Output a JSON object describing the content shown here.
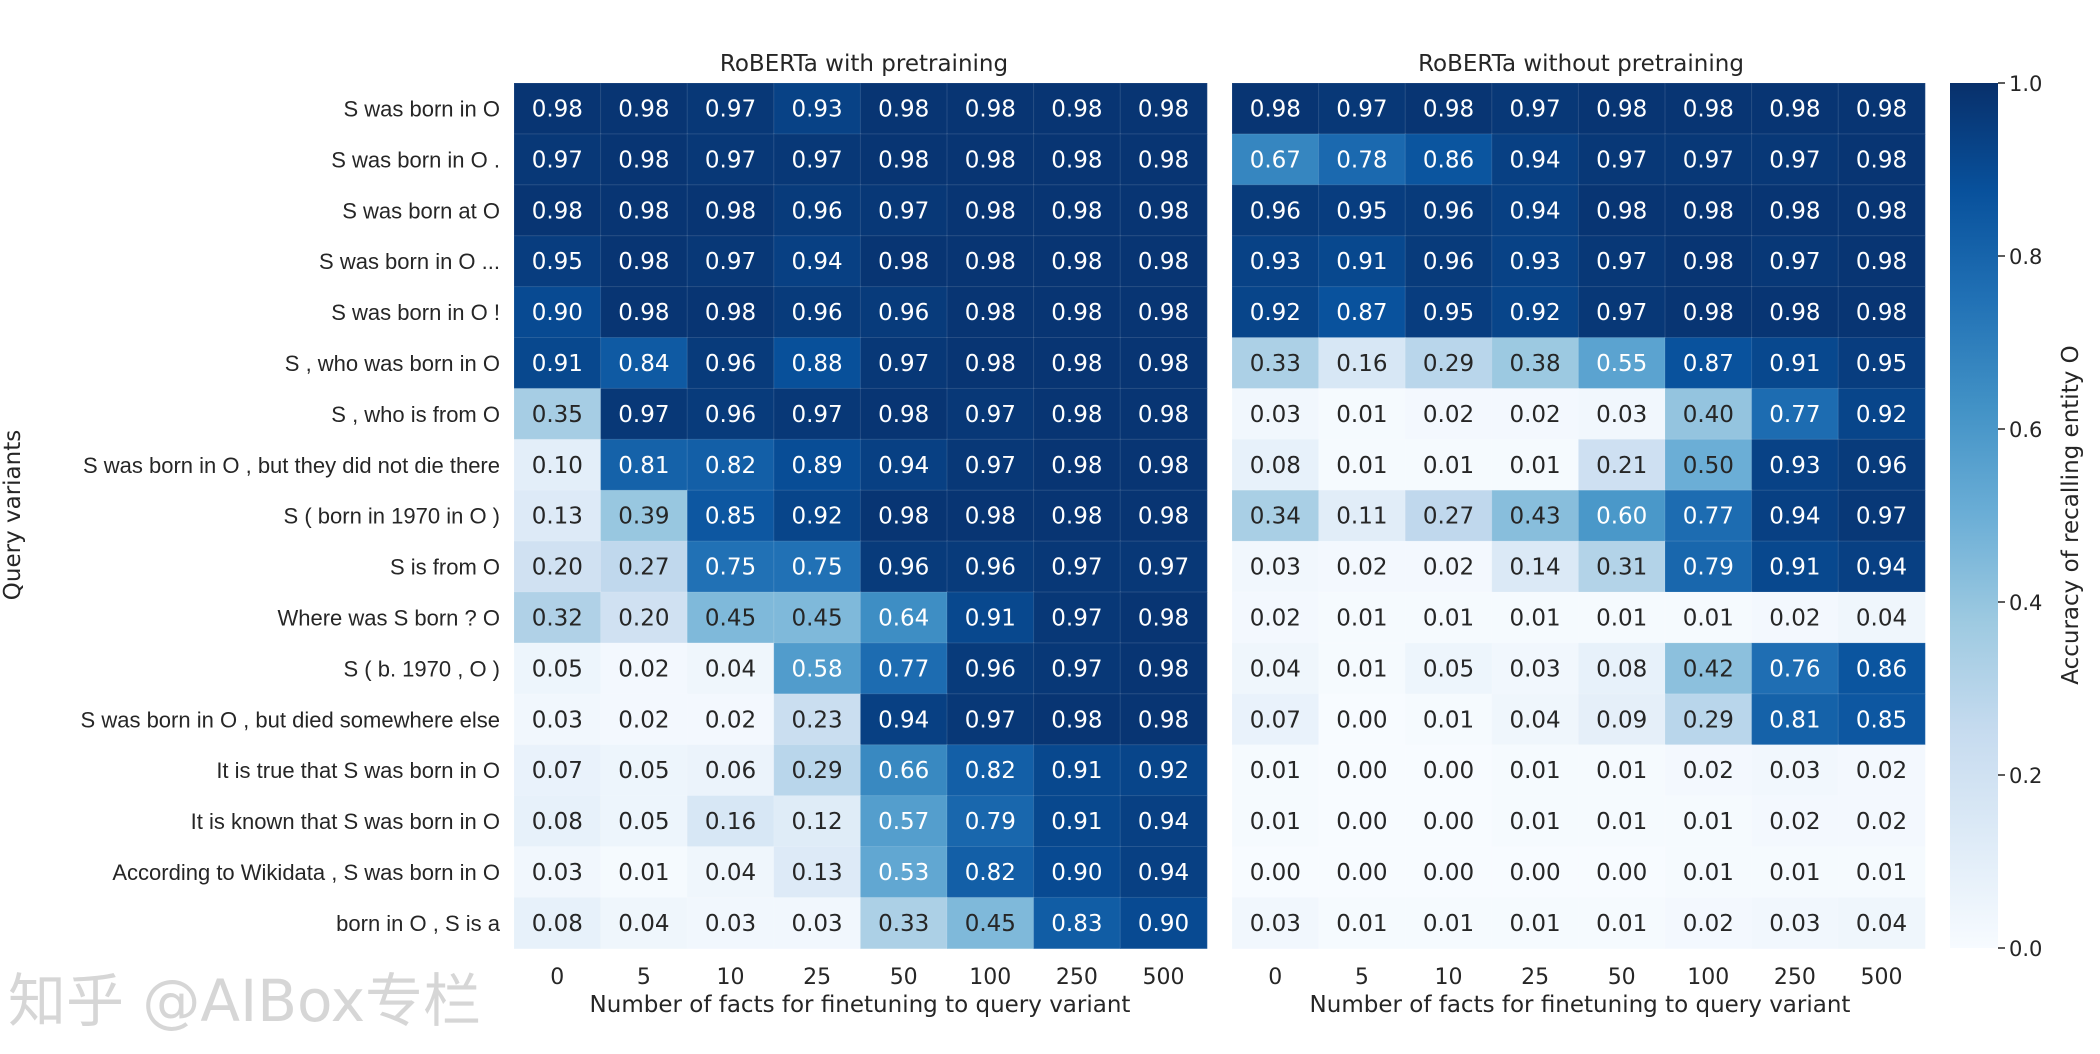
{
  "chart_data": [
    {
      "type": "heatmap",
      "title": "RoBERTa with pretraining",
      "xlabel": "Number of facts for finetuning to query variant",
      "ylabel": "Query variants",
      "x": [
        "0",
        "5",
        "10",
        "25",
        "50",
        "100",
        "250",
        "500"
      ],
      "y": [
        "S was born in O",
        "S was born in O .",
        "S was born at O",
        "S was born in O ...",
        "S was born in O !",
        "S , who was born in O",
        "S , who is from O",
        "S was born in O , but they did not die there",
        "S ( born in 1970 in O )",
        "S is from O",
        "Where was S born ? O",
        "S ( b. 1970 , O )",
        "S was born in O , but died somewhere else",
        "It is true that S was born in O",
        "It is known that S was born in O",
        "According to Wikidata , S was born in O",
        "born in O , S is a"
      ],
      "values": [
        [
          0.98,
          0.98,
          0.97,
          0.93,
          0.98,
          0.98,
          0.98,
          0.98
        ],
        [
          0.97,
          0.98,
          0.97,
          0.97,
          0.98,
          0.98,
          0.98,
          0.98
        ],
        [
          0.98,
          0.98,
          0.98,
          0.96,
          0.97,
          0.98,
          0.98,
          0.98
        ],
        [
          0.95,
          0.98,
          0.97,
          0.94,
          0.98,
          0.98,
          0.98,
          0.98
        ],
        [
          0.9,
          0.98,
          0.98,
          0.96,
          0.96,
          0.98,
          0.98,
          0.98
        ],
        [
          0.91,
          0.84,
          0.96,
          0.88,
          0.97,
          0.98,
          0.98,
          0.98
        ],
        [
          0.35,
          0.97,
          0.96,
          0.97,
          0.98,
          0.97,
          0.98,
          0.98
        ],
        [
          0.1,
          0.81,
          0.82,
          0.89,
          0.94,
          0.97,
          0.98,
          0.98
        ],
        [
          0.13,
          0.39,
          0.85,
          0.92,
          0.98,
          0.98,
          0.98,
          0.98
        ],
        [
          0.2,
          0.27,
          0.75,
          0.75,
          0.96,
          0.96,
          0.97,
          0.97
        ],
        [
          0.32,
          0.2,
          0.45,
          0.45,
          0.64,
          0.91,
          0.97,
          0.98
        ],
        [
          0.05,
          0.02,
          0.04,
          0.58,
          0.77,
          0.96,
          0.97,
          0.98
        ],
        [
          0.03,
          0.02,
          0.02,
          0.23,
          0.94,
          0.97,
          0.98,
          0.98
        ],
        [
          0.07,
          0.05,
          0.06,
          0.29,
          0.66,
          0.82,
          0.91,
          0.92
        ],
        [
          0.08,
          0.05,
          0.16,
          0.12,
          0.57,
          0.79,
          0.91,
          0.94
        ],
        [
          0.03,
          0.01,
          0.04,
          0.13,
          0.53,
          0.82,
          0.9,
          0.94
        ],
        [
          0.08,
          0.04,
          0.03,
          0.03,
          0.33,
          0.45,
          0.83,
          0.9
        ]
      ]
    },
    {
      "type": "heatmap",
      "title": "RoBERTa without pretraining",
      "xlabel": "Number of facts for finetuning to query variant",
      "x": [
        "0",
        "5",
        "10",
        "25",
        "50",
        "100",
        "250",
        "500"
      ],
      "values": [
        [
          0.98,
          0.97,
          0.98,
          0.97,
          0.98,
          0.98,
          0.98,
          0.98
        ],
        [
          0.67,
          0.78,
          0.86,
          0.94,
          0.97,
          0.97,
          0.97,
          0.98
        ],
        [
          0.96,
          0.95,
          0.96,
          0.94,
          0.98,
          0.98,
          0.98,
          0.98
        ],
        [
          0.93,
          0.91,
          0.96,
          0.93,
          0.97,
          0.98,
          0.97,
          0.98
        ],
        [
          0.92,
          0.87,
          0.95,
          0.92,
          0.97,
          0.98,
          0.98,
          0.98
        ],
        [
          0.33,
          0.16,
          0.29,
          0.38,
          0.55,
          0.87,
          0.91,
          0.95
        ],
        [
          0.03,
          0.01,
          0.02,
          0.02,
          0.03,
          0.4,
          0.77,
          0.92
        ],
        [
          0.08,
          0.01,
          0.01,
          0.01,
          0.21,
          0.5,
          0.93,
          0.96
        ],
        [
          0.34,
          0.11,
          0.27,
          0.43,
          0.6,
          0.77,
          0.94,
          0.97
        ],
        [
          0.03,
          0.02,
          0.02,
          0.14,
          0.31,
          0.79,
          0.91,
          0.94
        ],
        [
          0.02,
          0.01,
          0.01,
          0.01,
          0.01,
          0.01,
          0.02,
          0.04
        ],
        [
          0.04,
          0.01,
          0.05,
          0.03,
          0.08,
          0.42,
          0.76,
          0.86
        ],
        [
          0.07,
          0.0,
          0.01,
          0.04,
          0.09,
          0.29,
          0.81,
          0.85
        ],
        [
          0.01,
          0.0,
          0.0,
          0.01,
          0.01,
          0.02,
          0.03,
          0.02
        ],
        [
          0.01,
          0.0,
          0.0,
          0.01,
          0.01,
          0.01,
          0.02,
          0.02
        ],
        [
          0.0,
          0.0,
          0.0,
          0.0,
          0.0,
          0.01,
          0.01,
          0.01
        ],
        [
          0.03,
          0.01,
          0.01,
          0.01,
          0.01,
          0.02,
          0.03,
          0.04
        ]
      ]
    }
  ],
  "colorbar": {
    "label": "Accuracy of recalling entity O",
    "range": [
      0.0,
      1.0
    ],
    "ticks": [
      "0.0",
      "0.2",
      "0.4",
      "0.6",
      "0.8",
      "1.0"
    ],
    "colormap": "Blues",
    "colors": [
      "#f7fbff",
      "#deebf7",
      "#c6dbef",
      "#9ecae1",
      "#6baed6",
      "#4292c6",
      "#2171b5",
      "#08519c",
      "#08306b"
    ]
  },
  "watermark": "知乎 @AIBox专栏"
}
